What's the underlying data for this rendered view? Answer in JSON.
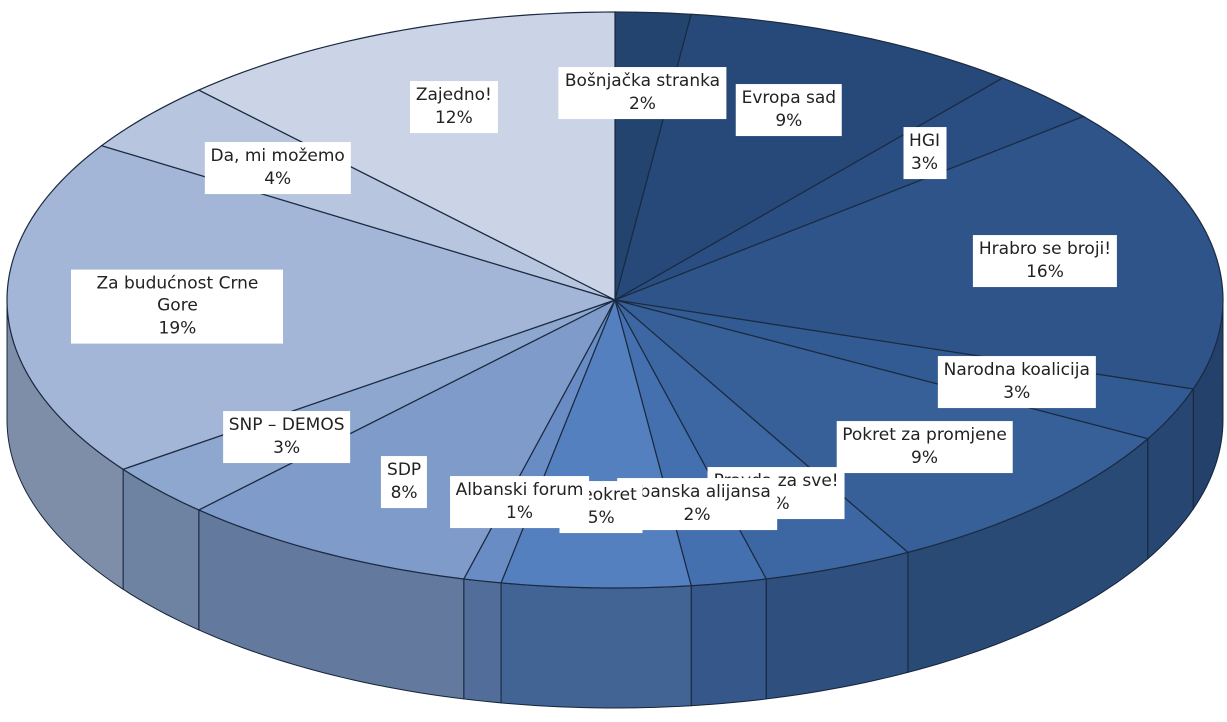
{
  "chart_data": {
    "type": "pie",
    "categories": [
      "Bošnjačka stranka",
      "Evropa sad",
      "HGI",
      "Hrabro se broji!",
      "Narodna koalicija",
      "Pokret za promjene",
      "Pravda za sve!",
      "Albanska alijansa",
      "Preokret",
      "Albanski forum",
      "SDP",
      "SNP – DEMOS",
      "Za budućnost Crne Gore",
      "Da, mi možemo",
      "Zajedno!"
    ],
    "values": [
      2,
      9,
      3,
      16,
      3,
      9,
      4,
      2,
      5,
      1,
      8,
      3,
      19,
      4,
      12
    ],
    "value_labels": [
      "2%",
      "9%",
      "3%",
      "16%",
      "3%",
      "9%",
      "4%",
      "2%",
      "5%",
      "1%",
      "8%",
      "3%",
      "19%",
      "4%",
      "12%"
    ],
    "colors": [
      "#23446f",
      "#27497a",
      "#2a4e82",
      "#2e5489",
      "#335b93",
      "#375f98",
      "#3d67a3",
      "#4470b0",
      "#5580bf",
      "#6a8cc4",
      "#7f9bc9",
      "#8ea7cf",
      "#a3b6d8",
      "#b7c5df",
      "#cad4e6"
    ]
  }
}
